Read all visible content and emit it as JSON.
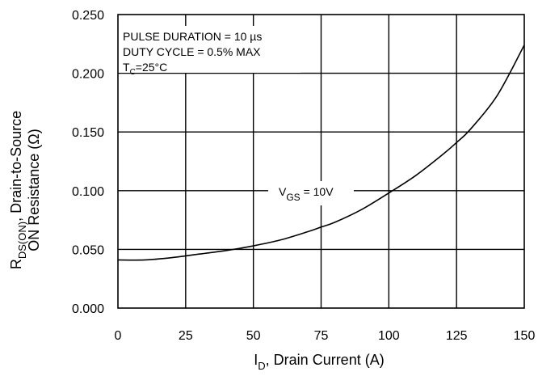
{
  "chart_data": {
    "type": "line",
    "xlabel": {
      "main": "I",
      "sub": "D",
      "rest": ", Drain Current (A)"
    },
    "ylabel": {
      "line1": {
        "main": "R",
        "sub": "DS(ON)",
        "rest": ", Drain-to-Source"
      },
      "line2": "ON Resistance (Ω)"
    },
    "xlim": [
      0,
      150
    ],
    "ylim": [
      0,
      0.25
    ],
    "x_ticks": [
      "0",
      "25",
      "50",
      "75",
      "100",
      "125",
      "150"
    ],
    "y_ticks": [
      "0.000",
      "0.050",
      "0.100",
      "0.150",
      "0.200",
      "0.250"
    ],
    "grid": true,
    "annotations": {
      "pulse_duration": "PULSE DURATION = 10 µs",
      "duty_cycle": "DUTY CYCLE = 0.5% MAX",
      "temperature": {
        "main": "T",
        "sub": "C",
        "rest": "=25°C"
      }
    },
    "series": [
      {
        "label": {
          "main": "V",
          "sub": "GS",
          "rest": " = 10V"
        },
        "x": [
          0,
          10,
          20,
          30,
          40,
          50,
          60,
          70,
          75,
          80,
          90,
          100,
          110,
          120,
          125,
          130,
          140,
          150
        ],
        "y": [
          0.041,
          0.041,
          0.043,
          0.046,
          0.049,
          0.053,
          0.058,
          0.065,
          0.069,
          0.073,
          0.084,
          0.098,
          0.113,
          0.131,
          0.141,
          0.152,
          0.181,
          0.224
        ]
      }
    ]
  }
}
